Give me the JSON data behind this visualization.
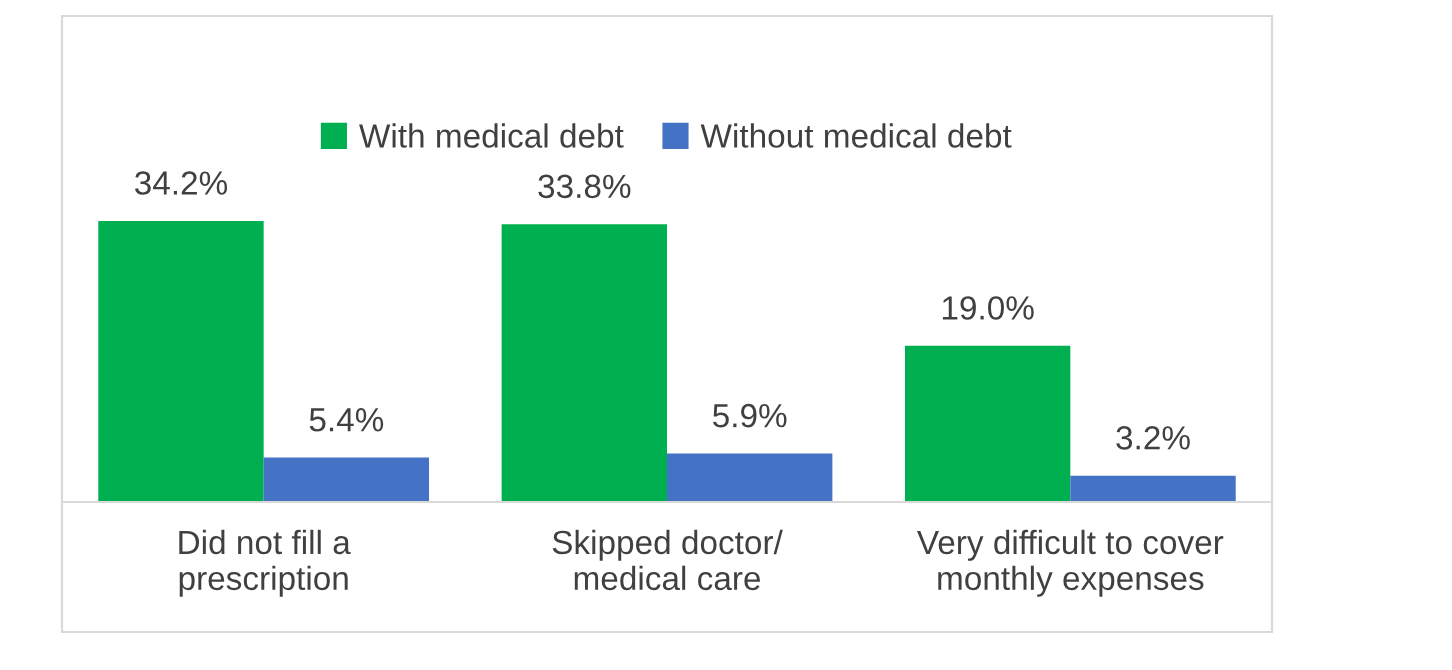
{
  "chart_data": {
    "type": "bar",
    "categories": [
      "Did not fill a\nprescription",
      "Skipped doctor/\nmedical care",
      "Very difficult to cover\nmonthly expenses"
    ],
    "series": [
      {
        "name": "With medical debt",
        "color": "#00b050",
        "values": [
          34.2,
          33.8,
          19.0
        ],
        "value_labels": [
          "34.2%",
          "33.8%",
          "19.0%"
        ]
      },
      {
        "name": "Without medical debt",
        "color": "#4472c4",
        "values": [
          5.4,
          5.9,
          3.2
        ],
        "value_labels": [
          "5.4%",
          "5.9%",
          "3.2%"
        ]
      }
    ],
    "legend": "top",
    "grid": false
  }
}
